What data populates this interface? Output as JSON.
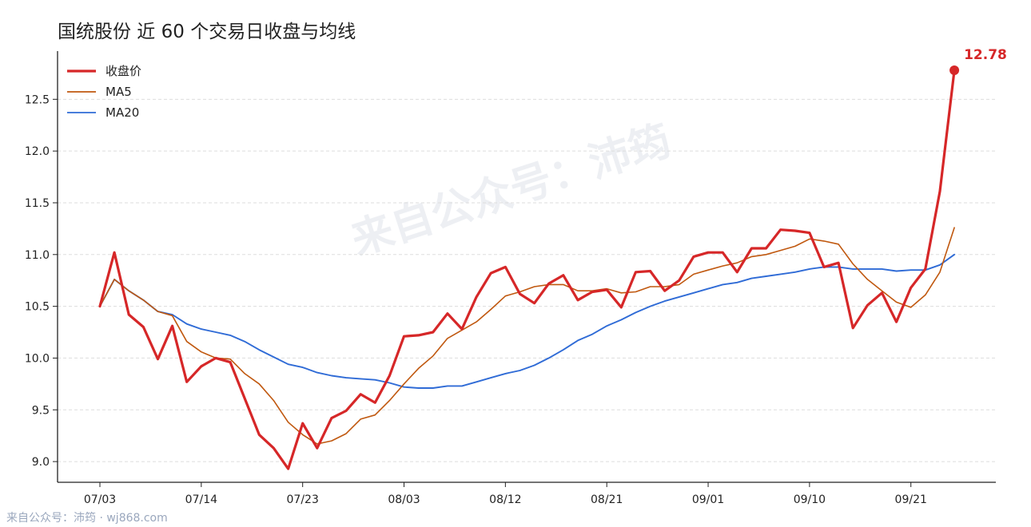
{
  "title": "国统股份 近 60 个交易日收盘与均线",
  "footer": "来自公众号：沛筠 · wj868.com",
  "watermark": "来自公众号：沛筠",
  "colors": {
    "close": "#d62728",
    "ma5": "#c0580f",
    "ma20": "#2f6bd6",
    "grid": "#dddddd",
    "axis": "#222222"
  },
  "chart_data": {
    "type": "line",
    "title": "国统股份 近 60 个交易日收盘与均线",
    "x_tick_labels": [
      "07/03",
      "07/14",
      "07/23",
      "08/03",
      "08/12",
      "08/21",
      "09/01",
      "09/10",
      "09/21"
    ],
    "x_tick_index": [
      0,
      7,
      14,
      21,
      28,
      35,
      42,
      49,
      56
    ],
    "yticks": [
      9.0,
      9.5,
      10.0,
      10.5,
      11.0,
      11.5,
      12.0,
      12.5
    ],
    "ylim": [
      8.8,
      12.95
    ],
    "grid": "horizontal dashed",
    "legend_position": "top-left",
    "end_annotation": "12.78",
    "series": [
      {
        "name": "收盘价",
        "key": "close",
        "values": [
          10.5,
          11.02,
          10.42,
          10.3,
          9.99,
          10.31,
          9.77,
          9.92,
          10.0,
          9.96,
          9.61,
          9.26,
          9.13,
          8.93,
          9.37,
          9.13,
          9.42,
          9.49,
          9.65,
          9.57,
          9.83,
          10.21,
          10.22,
          10.25,
          10.43,
          10.28,
          10.59,
          10.82,
          10.88,
          10.62,
          10.53,
          10.72,
          10.8,
          10.56,
          10.64,
          10.66,
          10.49,
          10.83,
          10.84,
          10.65,
          10.75,
          10.98,
          11.02,
          11.02,
          10.83,
          11.06,
          11.06,
          11.24,
          11.23,
          11.21,
          10.88,
          10.92,
          10.29,
          10.51,
          10.63,
          10.35,
          10.68,
          10.86,
          11.61,
          12.78
        ]
      },
      {
        "name": "MA5",
        "key": "ma5",
        "values": [
          10.5,
          10.76,
          10.65,
          10.56,
          10.45,
          10.41,
          10.16,
          10.06,
          10.0,
          9.99,
          9.85,
          9.75,
          9.59,
          9.38,
          9.26,
          9.17,
          9.2,
          9.27,
          9.41,
          9.45,
          9.59,
          9.75,
          9.9,
          10.02,
          10.19,
          10.27,
          10.35,
          10.47,
          10.6,
          10.64,
          10.69,
          10.71,
          10.71,
          10.65,
          10.65,
          10.67,
          10.63,
          10.64,
          10.69,
          10.69,
          10.71,
          10.81,
          10.85,
          10.89,
          10.92,
          10.98,
          11.0,
          11.04,
          11.08,
          11.15,
          11.13,
          11.1,
          10.91,
          10.76,
          10.65,
          10.54,
          10.49,
          10.61,
          10.83,
          11.26
        ]
      },
      {
        "name": "MA20",
        "key": "ma20",
        "values": [
          10.5,
          10.76,
          10.65,
          10.56,
          10.45,
          10.42,
          10.33,
          10.28,
          10.25,
          10.22,
          10.16,
          10.08,
          10.01,
          9.94,
          9.91,
          9.86,
          9.83,
          9.81,
          9.8,
          9.79,
          9.76,
          9.72,
          9.71,
          9.71,
          9.73,
          9.73,
          9.77,
          9.81,
          9.85,
          9.88,
          9.93,
          10.0,
          10.08,
          10.17,
          10.23,
          10.31,
          10.37,
          10.44,
          10.5,
          10.55,
          10.59,
          10.63,
          10.67,
          10.71,
          10.73,
          10.77,
          10.79,
          10.81,
          10.83,
          10.86,
          10.88,
          10.88,
          10.86,
          10.86,
          10.86,
          10.84,
          10.85,
          10.85,
          10.9,
          11.0
        ]
      }
    ]
  }
}
